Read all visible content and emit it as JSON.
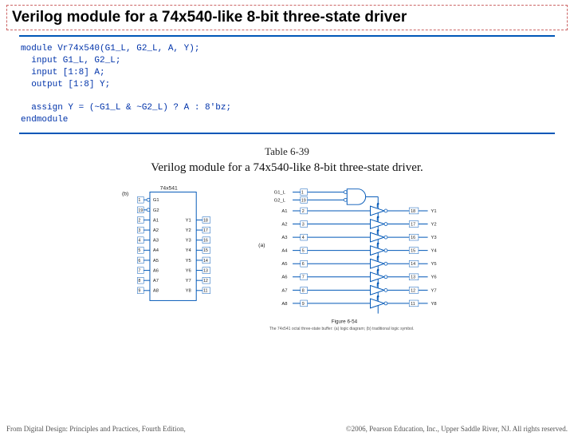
{
  "title": "Verilog module for a 74x540-like 8-bit three-state driver",
  "code": {
    "l1": "module Vr74x540(G1_L, G2_L, A, Y);",
    "l2": "  input G1_L, G2_L;",
    "l3": "  input [1:8] A;",
    "l4": "  output [1:8] Y;",
    "l5": "",
    "l6": "  assign Y = (~G1_L & ~G2_L) ? A : 8'bz;",
    "l7": "endmodule",
    "text_color": "#0033aa",
    "rule_color": "#0057b7"
  },
  "table_caption": "Table 6-39",
  "table_subcaption": "Verilog module for a 74x540-like 8-bit three-state driver.",
  "symbol": {
    "part": "74x541",
    "left_pins": [
      {
        "num": "1",
        "name": "G1"
      },
      {
        "num": "19",
        "name": "G2"
      },
      {
        "num": "2",
        "name": "A1"
      },
      {
        "num": "3",
        "name": "A2"
      },
      {
        "num": "4",
        "name": "A3"
      },
      {
        "num": "5",
        "name": "A4"
      },
      {
        "num": "6",
        "name": "A5"
      },
      {
        "num": "7",
        "name": "A6"
      },
      {
        "num": "8",
        "name": "A7"
      },
      {
        "num": "9",
        "name": "A8"
      }
    ],
    "right_pins": [
      {
        "num": "18",
        "name": "Y1"
      },
      {
        "num": "17",
        "name": "Y2"
      },
      {
        "num": "16",
        "name": "Y3"
      },
      {
        "num": "15",
        "name": "Y4"
      },
      {
        "num": "14",
        "name": "Y5"
      },
      {
        "num": "13",
        "name": "Y6"
      },
      {
        "num": "12",
        "name": "Y7"
      },
      {
        "num": "11",
        "name": "Y8"
      }
    ],
    "label_b": "(b)",
    "border_color": "#0057b7"
  },
  "logic": {
    "label_a": "(a)",
    "enable_inputs": [
      {
        "name": "G1_L",
        "pin": "1"
      },
      {
        "name": "G2_L",
        "pin": "19"
      }
    ],
    "buffers": [
      {
        "in": "A1",
        "in_pin": "2",
        "out": "Y1",
        "out_pin": "18"
      },
      {
        "in": "A2",
        "in_pin": "3",
        "out": "Y2",
        "out_pin": "17"
      },
      {
        "in": "A3",
        "in_pin": "4",
        "out": "Y3",
        "out_pin": "16"
      },
      {
        "in": "A4",
        "in_pin": "5",
        "out": "Y4",
        "out_pin": "15"
      },
      {
        "in": "A5",
        "in_pin": "6",
        "out": "Y5",
        "out_pin": "14"
      },
      {
        "in": "A6",
        "in_pin": "7",
        "out": "Y6",
        "out_pin": "13"
      },
      {
        "in": "A7",
        "in_pin": "8",
        "out": "Y7",
        "out_pin": "12"
      },
      {
        "in": "A8",
        "in_pin": "9",
        "out": "Y8",
        "out_pin": "11"
      }
    ],
    "figure_label": "Figure 6-54",
    "figure_caption": "The 74x541 octal three-state buffer: (a) logic diagram; (b) traditional logic symbol.",
    "wire_color": "#0057b7"
  },
  "footer_left": "From Digital Design: Principles and Practices, Fourth Edition,",
  "footer_right": "©2006, Pearson Education, Inc., Upper Saddle River, NJ. All rights reserved."
}
